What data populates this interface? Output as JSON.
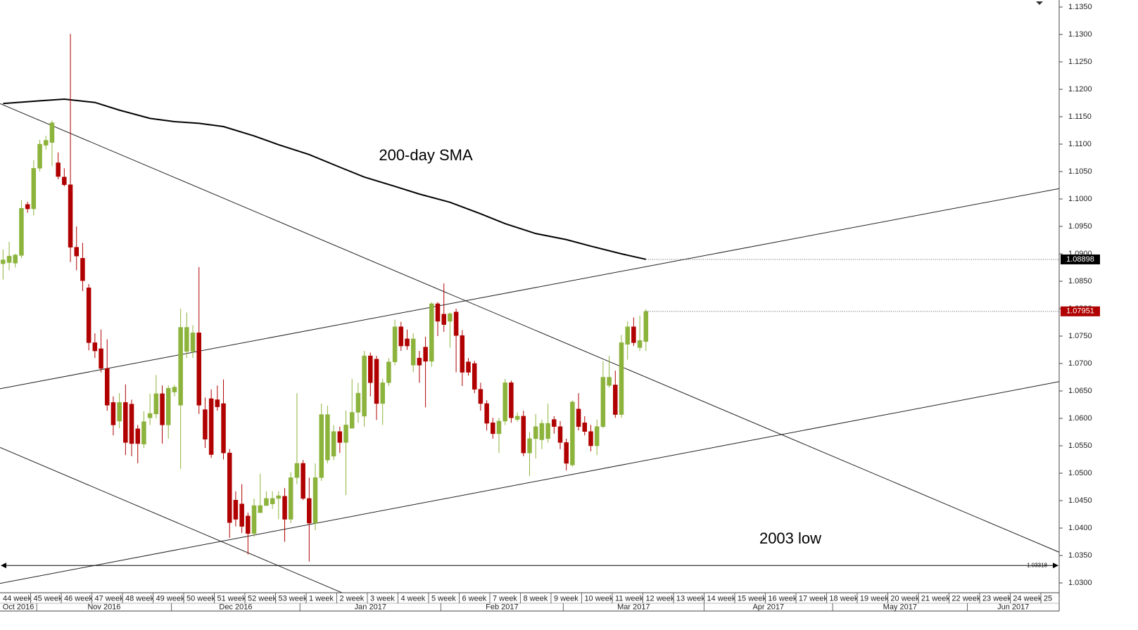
{
  "chart_data": {
    "type": "candlestick",
    "up_color": "#8cb33c",
    "down_color": "#b00000",
    "annotations": [
      "200-day SMA",
      "2003 low"
    ],
    "xlim": [
      -0.5,
      172.5
    ],
    "ylim": [
      1.02821,
      1.13628
    ],
    "yticks": [
      {
        "value": 1.03,
        "label": "1.0300"
      },
      {
        "value": 1.035,
        "label": "1.0350"
      },
      {
        "value": 1.04,
        "label": "1.0400"
      },
      {
        "value": 1.045,
        "label": "1.0450"
      },
      {
        "value": 1.05,
        "label": "1.0500"
      },
      {
        "value": 1.055,
        "label": "1.0550"
      },
      {
        "value": 1.06,
        "label": "1.0600"
      },
      {
        "value": 1.065,
        "label": "1.0650"
      },
      {
        "value": 1.07,
        "label": "1.0700"
      },
      {
        "value": 1.075,
        "label": "1.0750"
      },
      {
        "value": 1.08,
        "label": "1.0800"
      },
      {
        "value": 1.085,
        "label": "1.0850"
      },
      {
        "value": 1.09,
        "label": "1.0900"
      },
      {
        "value": 1.095,
        "label": "1.0950"
      },
      {
        "value": 1.1,
        "label": "1.1000"
      },
      {
        "value": 1.105,
        "label": "1.1050"
      },
      {
        "value": 1.11,
        "label": "1.1100"
      },
      {
        "value": 1.115,
        "label": "1.1150"
      },
      {
        "value": 1.12,
        "label": "1.1200"
      },
      {
        "value": 1.125,
        "label": "1.1250"
      },
      {
        "value": 1.13,
        "label": "1.1300"
      },
      {
        "value": 1.135,
        "label": "1.1350"
      }
    ],
    "xticks": [
      {
        "value": -0.5,
        "label": "44 week"
      },
      {
        "value": 4.5,
        "label": "45 week"
      },
      {
        "value": 9.5,
        "label": "46 week"
      },
      {
        "value": 14.5,
        "label": "47 week"
      },
      {
        "value": 19.5,
        "label": "48 week"
      },
      {
        "value": 24.5,
        "label": "49 week"
      },
      {
        "value": 29.5,
        "label": "50 week"
      },
      {
        "value": 34.5,
        "label": "51 week"
      },
      {
        "value": 39.5,
        "label": "52 week"
      },
      {
        "value": 44.5,
        "label": "53 week"
      },
      {
        "value": 49.5,
        "label": "1 week"
      },
      {
        "value": 54.5,
        "label": "2 week"
      },
      {
        "value": 59.5,
        "label": "3 week"
      },
      {
        "value": 64.5,
        "label": "4 week"
      },
      {
        "value": 69.5,
        "label": "5 week"
      },
      {
        "value": 74.5,
        "label": "6 week"
      },
      {
        "value": 79.5,
        "label": "7 week"
      },
      {
        "value": 84.5,
        "label": "8 week"
      },
      {
        "value": 89.5,
        "label": "9 week"
      },
      {
        "value": 94.5,
        "label": "10 week"
      },
      {
        "value": 99.5,
        "label": "11 week"
      },
      {
        "value": 104.5,
        "label": "12 week"
      },
      {
        "value": 109.5,
        "label": "13 week"
      },
      {
        "value": 114.5,
        "label": "14 week"
      },
      {
        "value": 119.5,
        "label": "15 week"
      },
      {
        "value": 124.5,
        "label": "16 week"
      },
      {
        "value": 129.5,
        "label": "17 week"
      },
      {
        "value": 134.5,
        "label": "18 week"
      },
      {
        "value": 139.5,
        "label": "19 week"
      },
      {
        "value": 144.5,
        "label": "20 week"
      },
      {
        "value": 149.5,
        "label": "21 week"
      },
      {
        "value": 154.5,
        "label": "22 week"
      },
      {
        "value": 159.5,
        "label": "23 week"
      },
      {
        "value": 164.5,
        "label": "24 week"
      },
      {
        "value": 169.5,
        "label": "25"
      }
    ],
    "month_ticks": [
      {
        "value": -0.5,
        "label": "Oct 2016"
      },
      {
        "value": 5.5,
        "label": "Nov 2016"
      },
      {
        "value": 27.5,
        "label": "Dec 2016"
      },
      {
        "value": 48.5,
        "label": "Jan 2017"
      },
      {
        "value": 71.5,
        "label": "Feb 2017"
      },
      {
        "value": 91.5,
        "label": "Mar 2017"
      },
      {
        "value": 114.5,
        "label": "Apr 2017"
      },
      {
        "value": 135.5,
        "label": "May 2017"
      },
      {
        "value": 157.5,
        "label": "Jun 2017"
      }
    ],
    "candles": [
      [
        1.0882,
        1.0908,
        1.0853,
        1.0889
      ],
      [
        1.0884,
        1.0922,
        1.087,
        1.0896
      ],
      [
        1.0883,
        1.09,
        1.0875,
        1.0898
      ],
      [
        1.0897,
        1.0998,
        1.0892,
        1.0983
      ],
      [
        1.099,
        1.0995,
        1.0975,
        1.0982
      ],
      [
        1.0982,
        1.1071,
        1.097,
        1.1056
      ],
      [
        1.1056,
        1.1108,
        1.105,
        1.11
      ],
      [
        1.1098,
        1.1115,
        1.109,
        1.1107
      ],
      [
        1.1103,
        1.1143,
        1.106,
        1.1139
      ],
      [
        1.1066,
        1.1085,
        1.1036,
        1.1041
      ],
      [
        1.104,
        1.1056,
        1.1023,
        1.1026
      ],
      [
        1.1026,
        1.1301,
        1.0885,
        1.0912
      ],
      [
        1.0912,
        1.095,
        1.087,
        1.0896
      ],
      [
        1.0892,
        1.092,
        1.0832,
        1.0851
      ],
      [
        1.0838,
        1.0845,
        1.0724,
        1.0738
      ],
      [
        1.0738,
        1.0755,
        1.071,
        1.0723
      ],
      [
        1.0727,
        1.0762,
        1.0684,
        1.0691
      ],
      [
        1.0691,
        1.0744,
        1.0614,
        1.0624
      ],
      [
        1.0629,
        1.064,
        1.0569,
        1.0588
      ],
      [
        1.0595,
        1.0646,
        1.0582,
        1.0629
      ],
      [
        1.0629,
        1.0662,
        1.0533,
        1.0556
      ],
      [
        1.0626,
        1.0634,
        1.0531,
        1.0554
      ],
      [
        1.0581,
        1.0588,
        1.0518,
        1.0554
      ],
      [
        1.0553,
        1.0613,
        1.0546,
        1.0594
      ],
      [
        1.0601,
        1.0645,
        1.0588,
        1.0609
      ],
      [
        1.0608,
        1.0679,
        1.06,
        1.0645
      ],
      [
        1.0645,
        1.066,
        1.0554,
        1.0588
      ],
      [
        1.0588,
        1.066,
        1.0563,
        1.0655
      ],
      [
        1.0648,
        1.0661,
        1.064,
        1.0657
      ],
      [
        1.0624,
        1.08,
        1.0508,
        1.0766
      ],
      [
        1.0722,
        1.0793,
        1.071,
        1.0766
      ],
      [
        1.0722,
        1.077,
        1.071,
        1.0756
      ],
      [
        1.0756,
        1.0876,
        1.0608,
        1.0624
      ],
      [
        1.0616,
        1.0638,
        1.0546,
        1.0562
      ],
      [
        1.0636,
        1.0653,
        1.0528,
        1.0534
      ],
      [
        1.0634,
        1.066,
        1.0614,
        1.0621
      ],
      [
        1.0627,
        1.0671,
        1.0525,
        1.0537
      ],
      [
        1.0537,
        1.0544,
        1.0382,
        1.041
      ],
      [
        1.0451,
        1.0467,
        1.0403,
        1.0416
      ],
      [
        1.0444,
        1.048,
        1.0391,
        1.0403
      ],
      [
        1.0422,
        1.0428,
        1.0352,
        1.039
      ],
      [
        1.039,
        1.0454,
        1.0384,
        1.0441
      ],
      [
        1.0428,
        1.0499,
        1.0428,
        1.0441
      ],
      [
        1.0441,
        1.0467,
        1.0441,
        1.0454
      ],
      [
        1.0444,
        1.0467,
        1.0435,
        1.0454
      ],
      [
        1.0454,
        1.0467,
        1.0416,
        1.0459
      ],
      [
        1.0458,
        1.0473,
        1.0375,
        1.0416
      ],
      [
        1.0416,
        1.0502,
        1.0409,
        1.0492
      ],
      [
        1.0492,
        1.0646,
        1.048,
        1.0518
      ],
      [
        1.0518,
        1.0524,
        1.0451,
        1.0454
      ],
      [
        1.0454,
        1.0492,
        1.0339,
        1.0409
      ],
      [
        1.0409,
        1.0518,
        1.0396,
        1.0492
      ],
      [
        1.0492,
        1.0627,
        1.0486,
        1.0607
      ],
      [
        1.0524,
        1.0623,
        1.0518,
        1.0607
      ],
      [
        1.0531,
        1.0588,
        1.0524,
        1.0576
      ],
      [
        1.0576,
        1.0585,
        1.0537,
        1.0556
      ],
      [
        1.0556,
        1.0614,
        1.046,
        1.0588
      ],
      [
        1.0582,
        1.0672,
        1.0582,
        1.0611
      ],
      [
        1.0611,
        1.0665,
        1.0592,
        1.0646
      ],
      [
        1.0604,
        1.0723,
        1.0585,
        1.0714
      ],
      [
        1.0714,
        1.072,
        1.064,
        1.0665
      ],
      [
        1.0708,
        1.0714,
        1.0597,
        1.0627
      ],
      [
        1.0627,
        1.0672,
        1.0588,
        1.0665
      ],
      [
        1.0665,
        1.071,
        1.0659,
        1.0703
      ],
      [
        1.0703,
        1.078,
        1.0697,
        1.0767
      ],
      [
        1.0767,
        1.0776,
        1.0723,
        1.0732
      ],
      [
        1.0745,
        1.0762,
        1.0725,
        1.0732
      ],
      [
        1.0697,
        1.0755,
        1.0684,
        1.0745
      ],
      [
        1.071,
        1.0723,
        1.0665,
        1.0697
      ],
      [
        1.073,
        1.0749,
        1.062,
        1.0704
      ],
      [
        1.0704,
        1.0812,
        1.0694,
        1.0809
      ],
      [
        1.0809,
        1.0812,
        1.075,
        1.0777
      ],
      [
        1.079,
        1.0846,
        1.0758,
        1.0771
      ],
      [
        1.0777,
        1.0793,
        1.0729,
        1.0791
      ],
      [
        1.0794,
        1.08,
        1.0684,
        1.0751
      ],
      [
        1.0751,
        1.0761,
        1.0659,
        1.0684
      ],
      [
        1.0703,
        1.071,
        1.0678,
        1.0684
      ],
      [
        1.07,
        1.0705,
        1.0646,
        1.0653
      ],
      [
        1.0653,
        1.0665,
        1.0614,
        1.0627
      ],
      [
        1.0627,
        1.0633,
        1.0578,
        1.0591
      ],
      [
        1.0592,
        1.0601,
        1.0563,
        1.0572
      ],
      [
        1.0572,
        1.0601,
        1.0537,
        1.0595
      ],
      [
        1.0595,
        1.0672,
        1.0588,
        1.0665
      ],
      [
        1.0665,
        1.0669,
        1.0592,
        1.0601
      ],
      [
        1.0598,
        1.0611,
        1.0594,
        1.0604
      ],
      [
        1.0604,
        1.0614,
        1.0531,
        1.0537
      ],
      [
        1.0537,
        1.0575,
        1.0495,
        1.0563
      ],
      [
        1.0563,
        1.0608,
        1.0527,
        1.0585
      ],
      [
        1.0561,
        1.0598,
        1.0544,
        1.0591
      ],
      [
        1.0563,
        1.0627,
        1.0556,
        1.0591
      ],
      [
        1.0598,
        1.0604,
        1.0572,
        1.0585
      ],
      [
        1.0585,
        1.0595,
        1.0544,
        1.0556
      ],
      [
        1.0556,
        1.0563,
        1.0505,
        1.0518
      ],
      [
        1.0515,
        1.0633,
        1.0512,
        1.063
      ],
      [
        1.0617,
        1.0646,
        1.0578,
        1.0585
      ],
      [
        1.0592,
        1.0604,
        1.0569,
        1.0576
      ],
      [
        1.0576,
        1.0588,
        1.054,
        1.055
      ],
      [
        1.055,
        1.0598,
        1.0533,
        1.0585
      ],
      [
        1.0585,
        1.0704,
        1.0582,
        1.0675
      ],
      [
        1.066,
        1.0714,
        1.0656,
        1.0675
      ],
      [
        1.0661,
        1.0687,
        1.0601,
        1.0607
      ],
      [
        1.0607,
        1.0752,
        1.0601,
        1.0738
      ],
      [
        1.0735,
        1.0777,
        1.0707,
        1.0767
      ],
      [
        1.0767,
        1.0784,
        1.0732,
        1.0738
      ],
      [
        1.0729,
        1.0787,
        1.0723,
        1.0742
      ],
      [
        1.074,
        1.0799,
        1.0723,
        1.0795
      ]
    ],
    "sma": {
      "color": "#000000",
      "x": [
        0,
        6,
        10,
        15,
        19,
        24,
        28,
        32,
        36,
        41,
        45,
        50,
        55,
        59,
        64,
        68,
        73,
        78,
        82,
        87,
        92,
        96,
        101,
        105
      ],
      "values": [
        1.1174,
        1.1179,
        1.1182,
        1.1176,
        1.1162,
        1.1147,
        1.1141,
        1.1138,
        1.1132,
        1.1115,
        1.1099,
        1.1081,
        1.1058,
        1.104,
        1.1023,
        1.1009,
        1.0994,
        1.0973,
        1.0955,
        1.0937,
        1.0926,
        1.0914,
        1.09,
        1.089
      ]
    },
    "trendlines": [
      {
        "x": [
          -0.5,
          172.5
        ],
        "values": [
          1.1174,
          1.0356
        ]
      },
      {
        "x": [
          -0.5,
          55.8
        ],
        "values": [
          1.0547,
          1.028
        ]
      },
      {
        "x": [
          -0.5,
          172.5
        ],
        "values": [
          1.0654,
          1.1019
        ]
      },
      {
        "x": [
          -0.5,
          172.5
        ],
        "values": [
          1.0299,
          1.0667
        ]
      }
    ],
    "price_lines": [
      {
        "value": 1.08898,
        "color": "#000000"
      },
      {
        "value": 1.07951,
        "color": "#b00000"
      }
    ],
    "low_line": {
      "value": 1.03318
    }
  }
}
